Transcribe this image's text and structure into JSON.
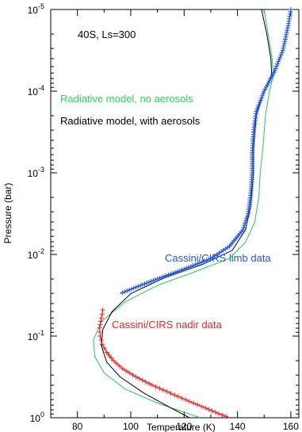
{
  "chart_data": {
    "type": "line",
    "xlabel": "Temperature (K)",
    "ylabel": "Pressure (bar)",
    "xlim": [
      70,
      163
    ],
    "ylim_log10": [
      -5,
      0
    ],
    "y_scale": "log",
    "y_inverted": true,
    "x_ticks": [
      80,
      100,
      120,
      140,
      160
    ],
    "x_tick_labels": [
      "80",
      "100",
      "120",
      "140",
      "160"
    ],
    "y_ticks_exp": [
      -5,
      -4,
      -3,
      -2,
      -1,
      0
    ],
    "y_tick_labels": [
      {
        "base": "10",
        "exp": "-5"
      },
      {
        "base": "10",
        "exp": "-4"
      },
      {
        "base": "10",
        "exp": "-3"
      },
      {
        "base": "10",
        "exp": "-2"
      },
      {
        "base": "10",
        "exp": "-1"
      },
      {
        "base": "10",
        "exp": "0"
      }
    ],
    "annotations": [
      {
        "text": "40S, Ls=300",
        "color": "#000000"
      },
      {
        "text": "Radiative model, no aerosols",
        "color": "#22dd55"
      },
      {
        "text": "Radiative model, with aerosols",
        "color": "#000000"
      },
      {
        "text": "Cassini/CIRS limb data",
        "color": "#2255ee"
      },
      {
        "text": "Cassini/CIRS nadir data",
        "color": "#ee2222"
      }
    ],
    "series": [
      {
        "color": "#22cc55",
        "style": "line",
        "points": [
          [
            150,
            -5
          ],
          [
            151.5,
            -4.7
          ],
          [
            153,
            -4.4
          ],
          [
            153.5,
            -4.2
          ],
          [
            152,
            -4
          ],
          [
            150.5,
            -3.7
          ],
          [
            149.5,
            -3.3
          ],
          [
            148.5,
            -3
          ],
          [
            148,
            -2.7
          ],
          [
            146.5,
            -2.4
          ],
          [
            143,
            -2.15
          ],
          [
            137,
            -1.95
          ],
          [
            125,
            -1.8
          ],
          [
            110,
            -1.62
          ],
          [
            98,
            -1.42
          ],
          [
            89,
            -1.18
          ],
          [
            86,
            -0.95
          ],
          [
            86.5,
            -0.75
          ],
          [
            90,
            -0.55
          ],
          [
            98,
            -0.35
          ],
          [
            110,
            -0.18
          ],
          [
            126,
            0
          ]
        ]
      },
      {
        "color": "#000000",
        "style": "line",
        "points": [
          [
            149,
            -5
          ],
          [
            151,
            -4.7
          ],
          [
            152.5,
            -4.4
          ],
          [
            152.8,
            -4.2
          ],
          [
            150,
            -4
          ],
          [
            147,
            -3.7
          ],
          [
            146,
            -3.3
          ],
          [
            146,
            -3
          ],
          [
            145,
            -2.6
          ],
          [
            143,
            -2.3
          ],
          [
            138,
            -2.05
          ],
          [
            127,
            -1.88
          ],
          [
            113,
            -1.72
          ],
          [
            100,
            -1.52
          ],
          [
            93,
            -1.3
          ],
          [
            89.5,
            -1.08
          ],
          [
            89,
            -0.88
          ],
          [
            91,
            -0.68
          ],
          [
            96,
            -0.5
          ],
          [
            105,
            -0.3
          ],
          [
            115,
            -0.12
          ],
          [
            122,
            0
          ]
        ]
      },
      {
        "color": "#2255ee",
        "style": "plus-line",
        "points": [
          [
            160,
            -5
          ],
          [
            159,
            -4.8
          ],
          [
            157,
            -4.5
          ],
          [
            154,
            -4.25
          ],
          [
            150,
            -4
          ],
          [
            147,
            -3.75
          ],
          [
            146,
            -3.5
          ],
          [
            145.5,
            -3.25
          ],
          [
            145.5,
            -3
          ],
          [
            145,
            -2.75
          ],
          [
            144,
            -2.5
          ],
          [
            142,
            -2.3
          ],
          [
            137,
            -2.1
          ],
          [
            130,
            -1.95
          ],
          [
            120,
            -1.82
          ],
          [
            110,
            -1.7
          ],
          [
            102,
            -1.6
          ],
          [
            96,
            -1.52
          ]
        ]
      },
      {
        "color": "#ee2222",
        "style": "plus-line",
        "points": [
          [
            89.5,
            -1.32
          ],
          [
            89,
            -1.22
          ],
          [
            88.3,
            -1.1
          ],
          [
            88.5,
            -1
          ],
          [
            89.3,
            -0.9
          ],
          [
            91,
            -0.8
          ],
          [
            93.5,
            -0.7
          ],
          [
            97,
            -0.6
          ],
          [
            102,
            -0.5
          ],
          [
            108,
            -0.4
          ],
          [
            115,
            -0.3
          ],
          [
            122,
            -0.2
          ],
          [
            128,
            -0.12
          ],
          [
            133,
            -0.05
          ],
          [
            137,
            0
          ]
        ]
      }
    ]
  }
}
